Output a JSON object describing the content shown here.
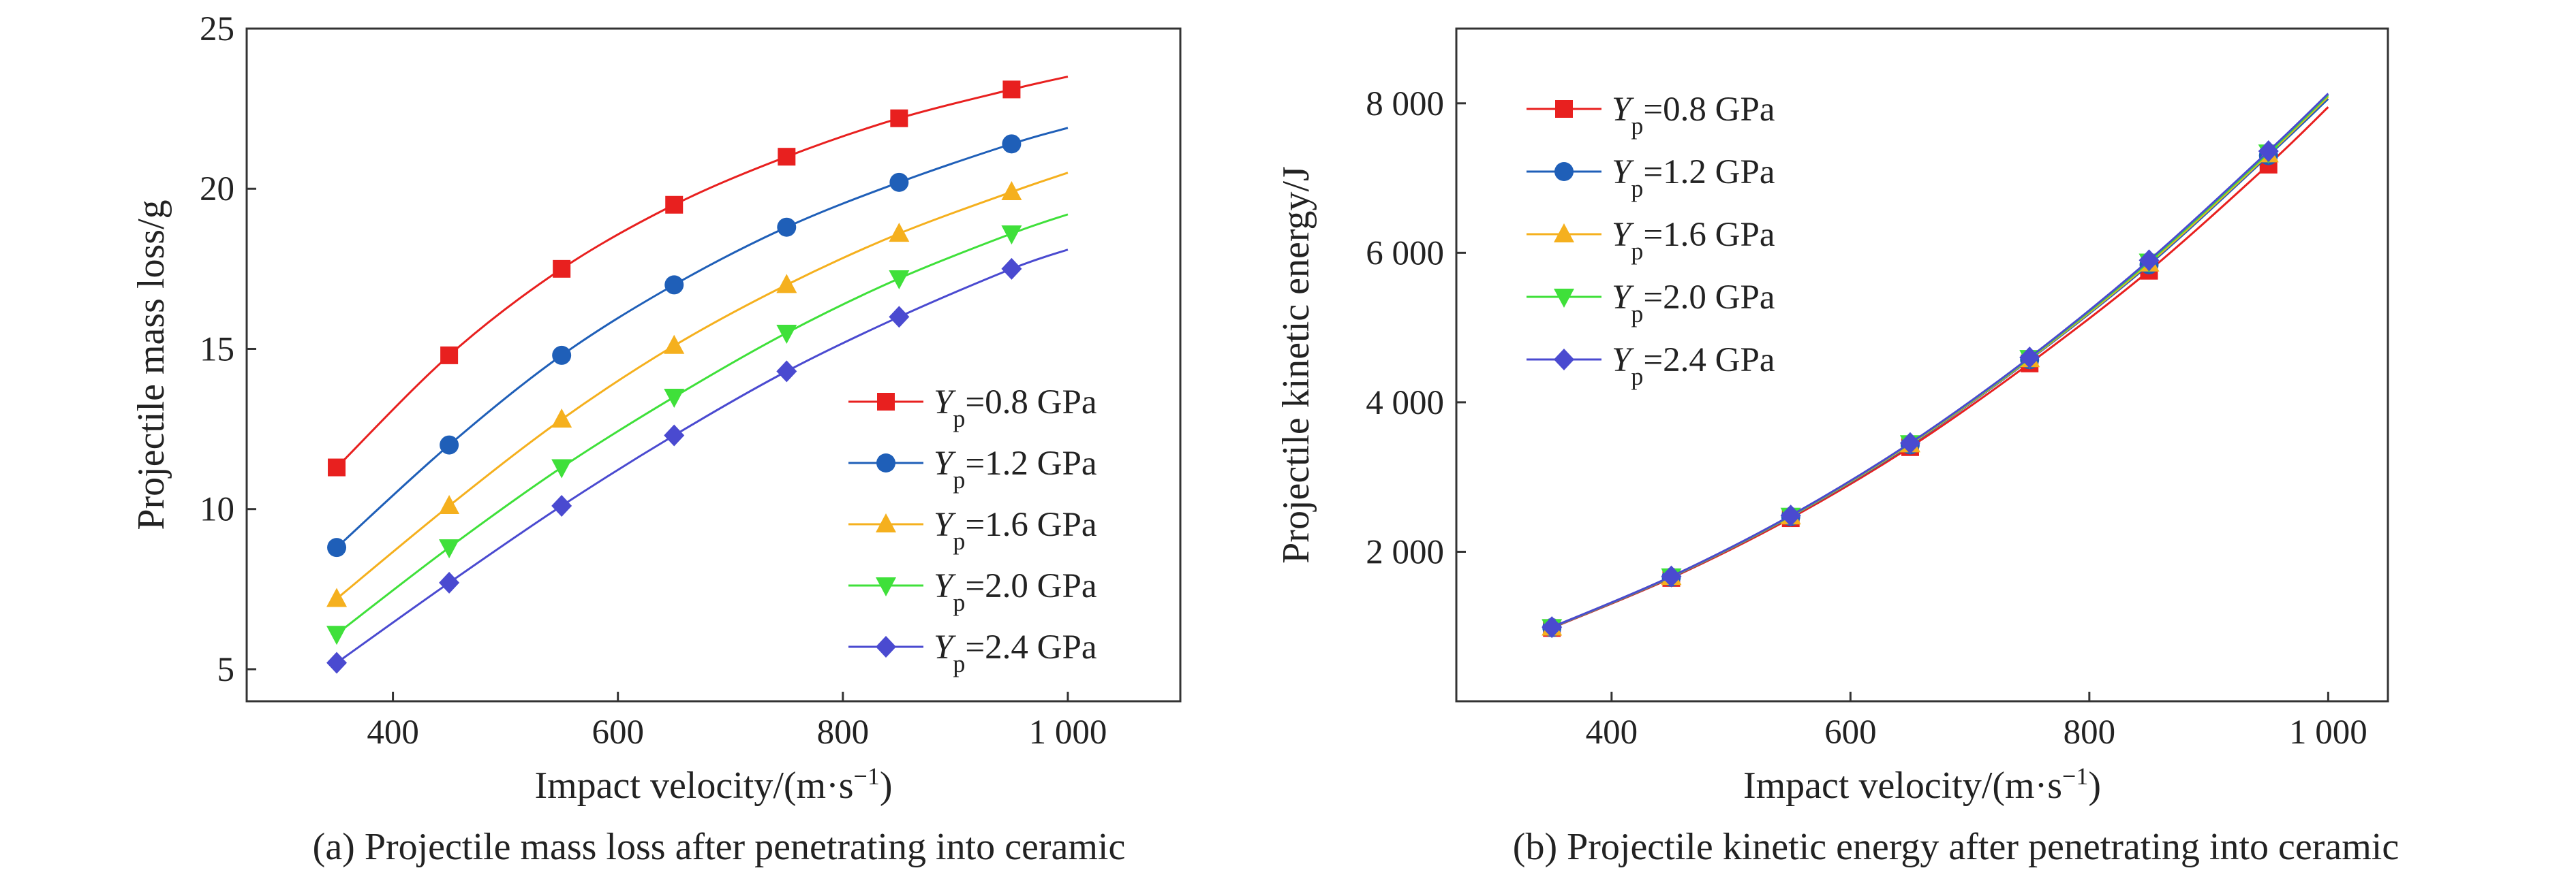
{
  "colors": {
    "series": [
      "#e8201f",
      "#1f5fb8",
      "#f5b01e",
      "#3fe03a",
      "#4a4ad0"
    ],
    "axis": "#333333"
  },
  "chart_data": [
    {
      "type": "line",
      "caption": "(a) Projectile mass loss after penetrating into ceramic",
      "xlabel": "Impact velocity/(m·s",
      "xlabel_sup": "−1",
      "xlabel_end": ")",
      "ylabel": "Projectile mass loss/g",
      "xlim": [
        270,
        1100
      ],
      "ylim": [
        4,
        25
      ],
      "xticks": [
        400,
        600,
        800,
        1000
      ],
      "xtick_labels": [
        "400",
        "600",
        "800",
        "1 000"
      ],
      "yticks": [
        5,
        10,
        15,
        20,
        25
      ],
      "ytick_labels": [
        "5",
        "10",
        "15",
        "20",
        "25"
      ],
      "legend_position": "bottom-right",
      "x": [
        350,
        450,
        550,
        650,
        750,
        850,
        950
      ],
      "curve_end_x": 1000,
      "series": [
        {
          "sym": "Y",
          "sub": "p",
          "rest": "=0.8 GPa",
          "marker": "square",
          "values": [
            11.3,
            14.8,
            17.5,
            19.5,
            21.0,
            22.2,
            23.1
          ],
          "end_value": 23.5
        },
        {
          "sym": "Y",
          "sub": "p",
          "rest": "=1.2 GPa",
          "marker": "circle",
          "values": [
            8.8,
            12.0,
            14.8,
            17.0,
            18.8,
            20.2,
            21.4
          ],
          "end_value": 21.9
        },
        {
          "sym": "Y",
          "sub": "p",
          "rest": "=1.6 GPa",
          "marker": "triangle-up",
          "values": [
            7.2,
            10.1,
            12.8,
            15.1,
            17.0,
            18.6,
            19.9
          ],
          "end_value": 20.5
        },
        {
          "sym": "Y",
          "sub": "p",
          "rest": "=2.0 GPa",
          "marker": "triangle-down",
          "values": [
            6.1,
            8.8,
            11.3,
            13.5,
            15.5,
            17.2,
            18.6
          ],
          "end_value": 19.2
        },
        {
          "sym": "Y",
          "sub": "p",
          "rest": "=2.4 GPa",
          "marker": "diamond",
          "values": [
            5.2,
            7.7,
            10.1,
            12.3,
            14.3,
            16.0,
            17.5
          ],
          "end_value": 18.1
        }
      ]
    },
    {
      "type": "line",
      "caption": "(b) Projectile kinetic energy after penetrating into ceramic",
      "xlabel": "Impact velocity/(m·s",
      "xlabel_sup": "−1",
      "xlabel_end": ")",
      "ylabel": "Projectile kinetic energy/J",
      "xlim": [
        270,
        1050
      ],
      "ylim": [
        0,
        9000
      ],
      "xticks": [
        400,
        600,
        800,
        1000
      ],
      "xtick_labels": [
        "400",
        "600",
        "800",
        "1 000"
      ],
      "yticks": [
        2000,
        4000,
        6000,
        8000
      ],
      "ytick_labels": [
        "2 000",
        "4 000",
        "6 000",
        "8 000"
      ],
      "legend_position": "top-left",
      "x": [
        350,
        450,
        550,
        650,
        750,
        850,
        950
      ],
      "curve_end_x": 1000,
      "series": [
        {
          "sym": "Y",
          "sub": "p",
          "rest": "=0.8 GPa",
          "marker": "square",
          "values": [
            980,
            1650,
            2450,
            3400,
            4520,
            5760,
            7180
          ],
          "end_value": 7950
        },
        {
          "sym": "Y",
          "sub": "p",
          "rest": "=1.2 GPa",
          "marker": "circle",
          "values": [
            985,
            1660,
            2470,
            3430,
            4570,
            5840,
            7300
          ],
          "end_value": 8060
        },
        {
          "sym": "Y",
          "sub": "p",
          "rest": "=1.6 GPa",
          "marker": "triangle-up",
          "values": [
            988,
            1665,
            2475,
            3440,
            4580,
            5860,
            7320
          ],
          "end_value": 8090
        },
        {
          "sym": "Y",
          "sub": "p",
          "rest": "=2.0 GPa",
          "marker": "triangle-down",
          "values": [
            990,
            1668,
            2480,
            3450,
            4590,
            5880,
            7340
          ],
          "end_value": 8110
        },
        {
          "sym": "Y",
          "sub": "p",
          "rest": "=2.4 GPa",
          "marker": "diamond",
          "values": [
            992,
            1670,
            2485,
            3455,
            4600,
            5900,
            7360
          ],
          "end_value": 8130
        }
      ]
    }
  ]
}
